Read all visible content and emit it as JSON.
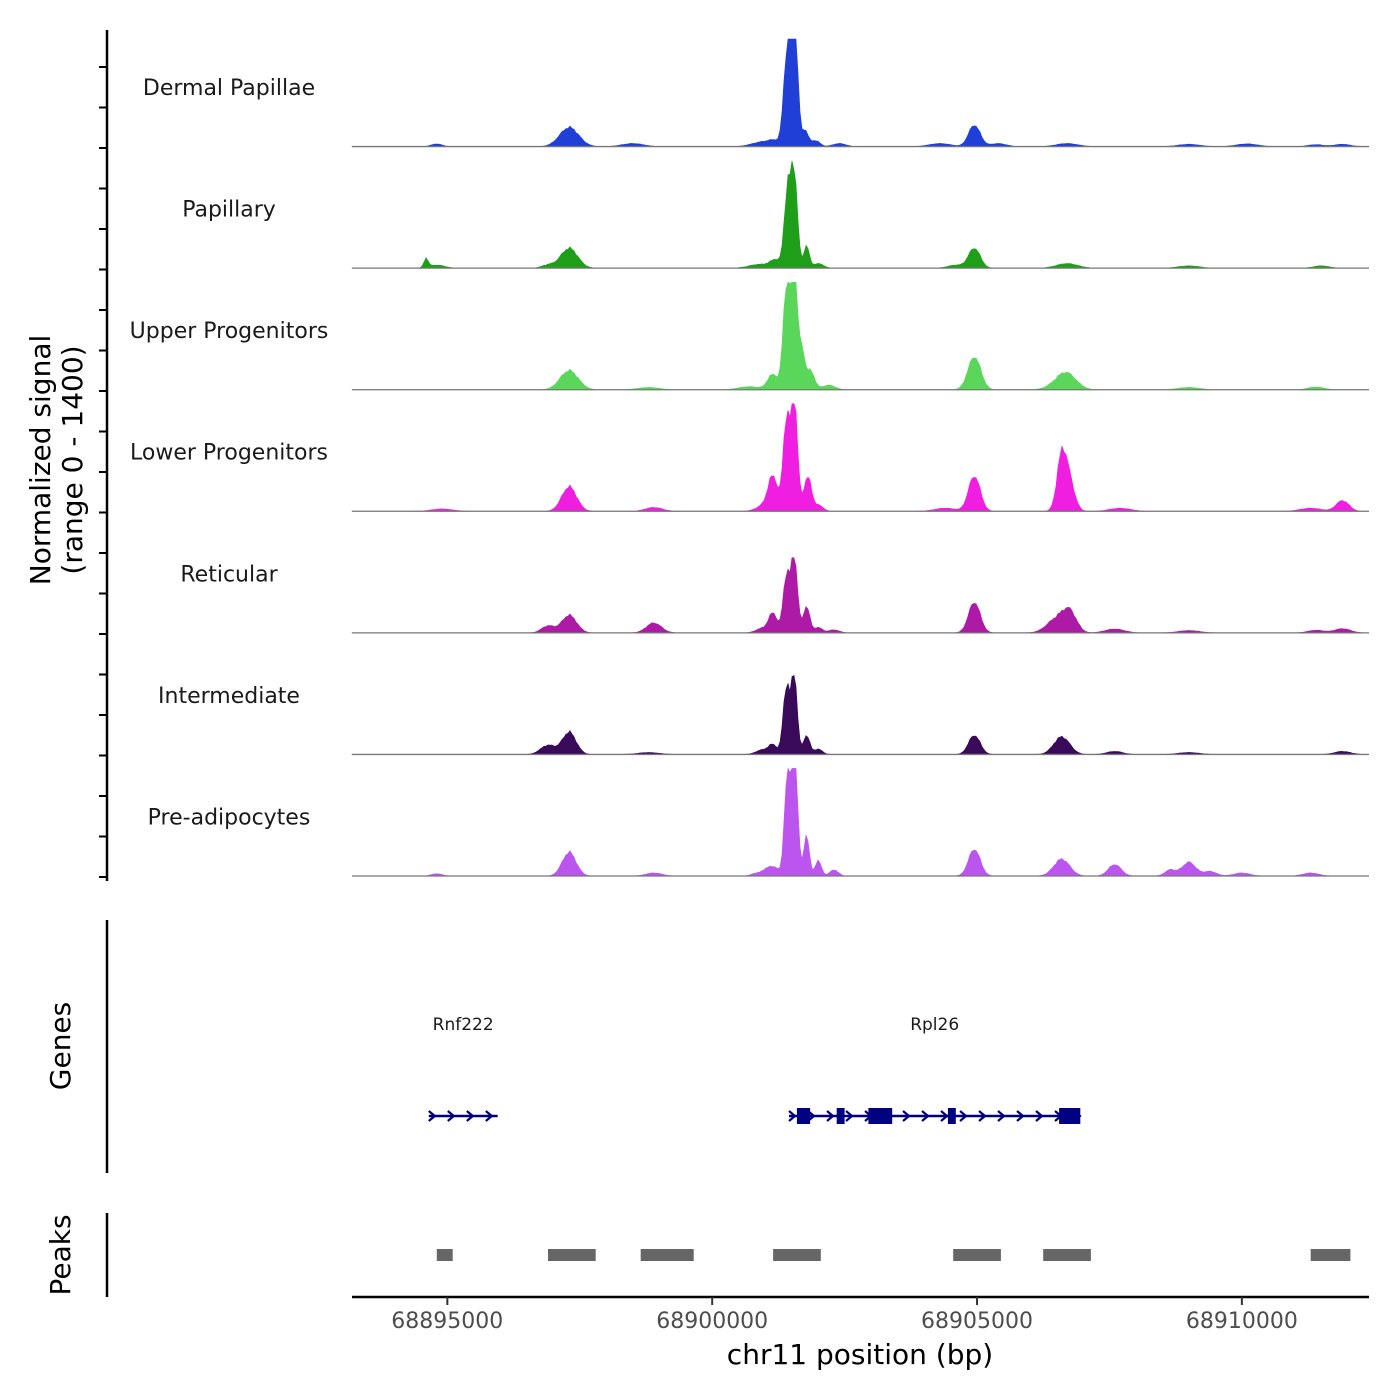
{
  "chart_data": {
    "type": "area",
    "title": "",
    "ylabel": [
      "Normalized signal",
      "(range 0 - 1400)"
    ],
    "xlabel": "chr11 position (bp)",
    "ylim": [
      0,
      1400
    ],
    "xlim": [
      68893200,
      68912400
    ],
    "x_ticks": [
      68895000,
      68900000,
      68905000,
      68910000
    ],
    "x_tick_labels": [
      "68895000",
      "68900000",
      "68905000",
      "68910000"
    ],
    "panel_titles": {
      "genes": "Genes",
      "peaks": "Peaks"
    },
    "tracks": [
      {
        "name": "Dermal Papillae",
        "color": "#1f3fd6",
        "peaks": [
          [
            68894800,
            35,
            100
          ],
          [
            68897300,
            250,
            180
          ],
          [
            68898500,
            40,
            200
          ],
          [
            68900950,
            60,
            200
          ],
          [
            68901200,
            60,
            120
          ],
          [
            68901400,
            1000,
            60
          ],
          [
            68901500,
            1150,
            60
          ],
          [
            68901580,
            1100,
            50
          ],
          [
            68901750,
            220,
            60
          ],
          [
            68901950,
            80,
            80
          ],
          [
            68902400,
            40,
            120
          ],
          [
            68904300,
            40,
            200
          ],
          [
            68904950,
            280,
            110
          ],
          [
            68905400,
            40,
            150
          ],
          [
            68906700,
            40,
            200
          ],
          [
            68909000,
            30,
            200
          ],
          [
            68910100,
            35,
            200
          ],
          [
            68911400,
            25,
            150
          ],
          [
            68911900,
            30,
            150
          ]
        ]
      },
      {
        "name": "Papillary",
        "color": "#1f9e1a",
        "peaks": [
          [
            68894600,
            120,
            40
          ],
          [
            68894800,
            40,
            150
          ],
          [
            68896900,
            40,
            120
          ],
          [
            68897300,
            260,
            160
          ],
          [
            68900900,
            50,
            200
          ],
          [
            68901200,
            100,
            100
          ],
          [
            68901420,
            1000,
            60
          ],
          [
            68901550,
            1250,
            60
          ],
          [
            68901780,
            300,
            50
          ],
          [
            68902000,
            60,
            100
          ],
          [
            68904600,
            40,
            150
          ],
          [
            68904950,
            260,
            110
          ],
          [
            68906700,
            60,
            200
          ],
          [
            68909000,
            30,
            200
          ],
          [
            68911500,
            30,
            150
          ]
        ]
      },
      {
        "name": "Upper Progenitors",
        "color": "#5ad65a",
        "peaks": [
          [
            68897300,
            250,
            170
          ],
          [
            68898800,
            30,
            200
          ],
          [
            68900700,
            40,
            200
          ],
          [
            68901150,
            200,
            100
          ],
          [
            68901400,
            1350,
            60
          ],
          [
            68901550,
            1700,
            60
          ],
          [
            68901700,
            450,
            50
          ],
          [
            68901850,
            250,
            80
          ],
          [
            68902200,
            60,
            120
          ],
          [
            68904950,
            430,
            120
          ],
          [
            68906700,
            180,
            180
          ],
          [
            68906550,
            60,
            200
          ],
          [
            68909000,
            30,
            200
          ],
          [
            68911400,
            35,
            150
          ]
        ]
      },
      {
        "name": "Lower Progenitors",
        "color": "#f01ee0",
        "peaks": [
          [
            68894900,
            30,
            200
          ],
          [
            68897300,
            320,
            140
          ],
          [
            68898900,
            50,
            160
          ],
          [
            68901000,
            80,
            150
          ],
          [
            68901150,
            420,
            90
          ],
          [
            68901400,
            1200,
            60
          ],
          [
            68901550,
            1500,
            60
          ],
          [
            68901800,
            450,
            70
          ],
          [
            68902000,
            80,
            90
          ],
          [
            68904400,
            40,
            200
          ],
          [
            68904950,
            460,
            110
          ],
          [
            68906600,
            700,
            90
          ],
          [
            68906750,
            350,
            100
          ],
          [
            68907700,
            40,
            200
          ],
          [
            68911300,
            40,
            200
          ],
          [
            68911900,
            140,
            120
          ]
        ]
      },
      {
        "name": "Reticular",
        "color": "#ad1aa6",
        "peaks": [
          [
            68896900,
            90,
            120
          ],
          [
            68897300,
            230,
            140
          ],
          [
            68898900,
            130,
            140
          ],
          [
            68900950,
            60,
            120
          ],
          [
            68901150,
            250,
            80
          ],
          [
            68901400,
            750,
            60
          ],
          [
            68901550,
            1000,
            60
          ],
          [
            68901780,
            350,
            60
          ],
          [
            68902000,
            70,
            80
          ],
          [
            68902300,
            40,
            100
          ],
          [
            68904950,
            400,
            110
          ],
          [
            68906500,
            180,
            180
          ],
          [
            68906750,
            250,
            130
          ],
          [
            68907600,
            50,
            180
          ],
          [
            68909000,
            30,
            200
          ],
          [
            68911400,
            35,
            150
          ],
          [
            68911900,
            55,
            150
          ]
        ]
      },
      {
        "name": "Intermediate",
        "color": "#3a0a5a",
        "peaks": [
          [
            68896900,
            120,
            140
          ],
          [
            68897300,
            290,
            130
          ],
          [
            68898800,
            25,
            200
          ],
          [
            68900950,
            60,
            120
          ],
          [
            68901150,
            120,
            80
          ],
          [
            68901400,
            900,
            60
          ],
          [
            68901550,
            1050,
            55
          ],
          [
            68901780,
            250,
            60
          ],
          [
            68902000,
            70,
            80
          ],
          [
            68904950,
            250,
            110
          ],
          [
            68906600,
            230,
            150
          ],
          [
            68907600,
            40,
            150
          ],
          [
            68909000,
            25,
            200
          ],
          [
            68911900,
            40,
            150
          ]
        ]
      },
      {
        "name": "Pre-adipocytes",
        "color": "#bb55ee",
        "peaks": [
          [
            68894800,
            30,
            100
          ],
          [
            68897300,
            310,
            130
          ],
          [
            68898900,
            40,
            150
          ],
          [
            68900850,
            40,
            100
          ],
          [
            68901050,
            100,
            80
          ],
          [
            68901200,
            100,
            70
          ],
          [
            68901420,
            1400,
            55
          ],
          [
            68901560,
            1600,
            55
          ],
          [
            68901780,
            550,
            50
          ],
          [
            68902000,
            200,
            60
          ],
          [
            68902300,
            80,
            80
          ],
          [
            68904950,
            350,
            110
          ],
          [
            68906600,
            220,
            150
          ],
          [
            68907600,
            150,
            120
          ],
          [
            68908650,
            80,
            100
          ],
          [
            68909000,
            180,
            130
          ],
          [
            68909400,
            60,
            120
          ],
          [
            68910000,
            40,
            150
          ],
          [
            68911300,
            40,
            150
          ]
        ]
      }
    ],
    "genes": [
      {
        "name": "Rnf222",
        "color": "#000080",
        "start": 68894650,
        "end": 68895950,
        "strand": "+",
        "exons": []
      },
      {
        "name": "Rpl26",
        "color": "#000080",
        "start": 68901450,
        "end": 68906950,
        "strand": "+",
        "exons": [
          [
            68901600,
            68901850
          ],
          [
            68902350,
            68902500
          ],
          [
            68902950,
            68903400
          ],
          [
            68904450,
            68904600
          ],
          [
            68906550,
            68906950
          ]
        ]
      }
    ],
    "peaks_bed": [
      [
        68894800,
        68895100
      ],
      [
        68896900,
        68897800
      ],
      [
        68898650,
        68899650
      ],
      [
        68901150,
        68902050
      ],
      [
        68904550,
        68905450
      ],
      [
        68906250,
        68907150
      ],
      [
        68911300,
        68912050
      ]
    ]
  }
}
